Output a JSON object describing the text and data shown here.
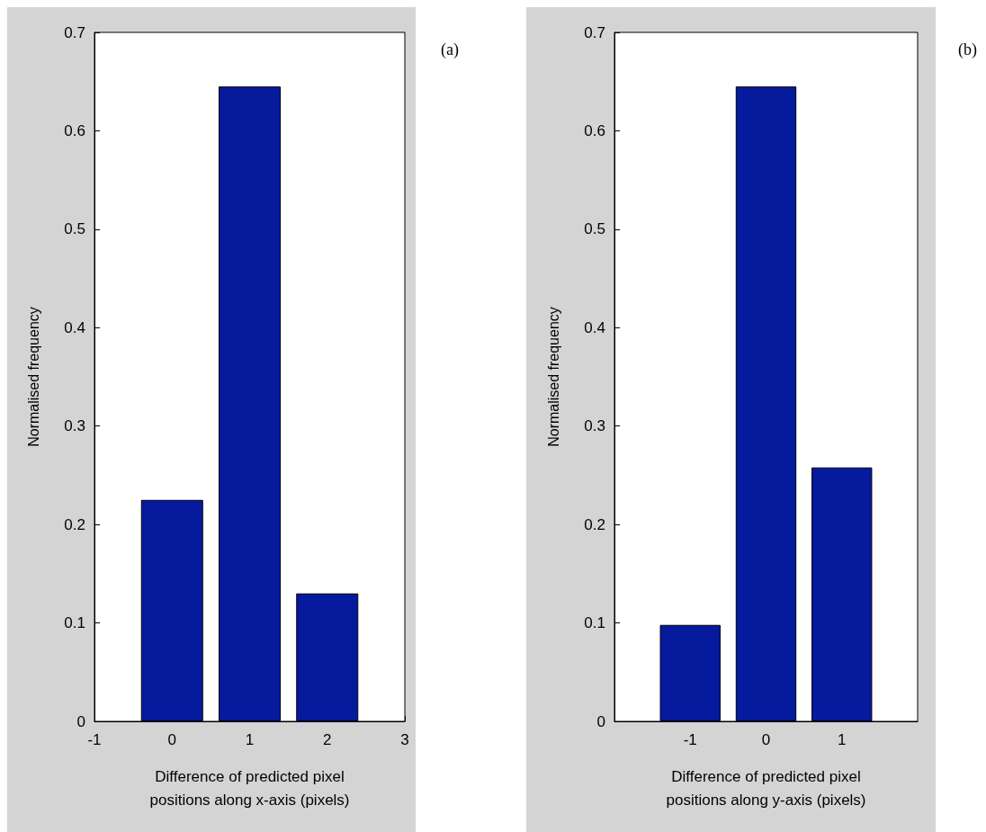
{
  "chart_data": [
    {
      "type": "bar",
      "annotations": [
        "(a)"
      ],
      "xlabel": "Difference of predicted pixel\npositions along x-axis (pixels)",
      "ylabel": "Normalised frequency",
      "x": [
        0,
        1,
        2
      ],
      "values": [
        0.225,
        0.645,
        0.13
      ],
      "color": "#061a9e",
      "xlim": [
        -1,
        3
      ],
      "xticks": [
        -1,
        0,
        1,
        2,
        3
      ],
      "ylim": [
        0,
        0.7
      ],
      "yticks": [
        0,
        0.1,
        0.2,
        0.3,
        0.4,
        0.5,
        0.6,
        0.7
      ],
      "grid": false
    },
    {
      "type": "bar",
      "annotations": [
        "(b)"
      ],
      "xlabel": "Difference of predicted pixel\npositions along y-axis (pixels)",
      "ylabel": "Normalised frequency",
      "x": [
        -1,
        0,
        1
      ],
      "values": [
        0.098,
        0.645,
        0.258
      ],
      "color": "#061a9e",
      "xlim": [
        -2,
        2
      ],
      "xticks": [
        -1,
        0,
        1
      ],
      "ylim": [
        0,
        0.7
      ],
      "yticks": [
        0,
        0.1,
        0.2,
        0.3,
        0.4,
        0.5,
        0.6,
        0.7
      ],
      "grid": false
    }
  ]
}
